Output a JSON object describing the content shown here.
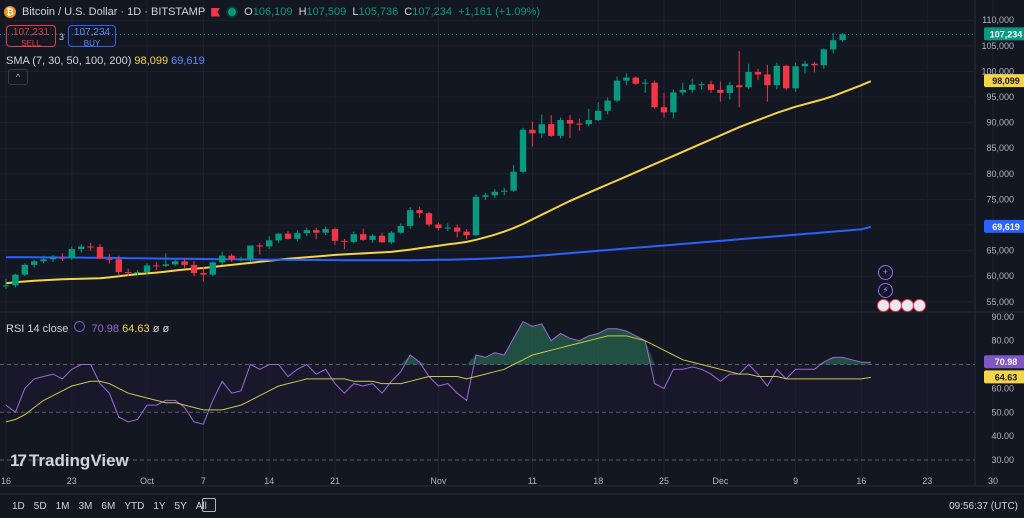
{
  "header": {
    "symbol": "Bitcoin / U.S. Dollar · 1D · BITSTAMP",
    "coin_glyph": "₿",
    "ohlc": [
      {
        "k": "O",
        "v": "106,109"
      },
      {
        "k": "H",
        "v": "107,509"
      },
      {
        "k": "L",
        "v": "105,736"
      },
      {
        "k": "C",
        "v": "107,234"
      }
    ],
    "change": "+1,161 (+1.09%)"
  },
  "trade": {
    "sell_price": "107,231",
    "sell_label": "SELL",
    "spread": "3",
    "buy_price": "107,234",
    "buy_label": "BUY"
  },
  "sma_legend": {
    "label": "SMA (7, 30, 50, 100, 200)",
    "value1": "98,099",
    "value2": "69,619",
    "collapse": "^"
  },
  "rsi_legend": {
    "label": "RSI 14 close",
    "value1": "70.98",
    "value2": "64.63",
    "extra1": "ø",
    "extra2": "ø"
  },
  "price_labels": [
    {
      "text": "107,234",
      "value": 107234,
      "color": "#089981"
    },
    {
      "text": "98,099",
      "value": 98099,
      "color": "#f5d547"
    },
    {
      "text": "69,619",
      "value": 69619,
      "color": "#2962ff"
    }
  ],
  "rsi_labels": [
    {
      "text": "70.98",
      "value": 70.98,
      "color": "#7e57c2"
    },
    {
      "text": "64.63",
      "value": 64.63,
      "color": "#f5d547"
    }
  ],
  "branding": {
    "logo_mark": "17",
    "logo_text": "TradingView"
  },
  "periods": [
    "1D",
    "5D",
    "1M",
    "3M",
    "6M",
    "YTD",
    "1Y",
    "5Y",
    "All"
  ],
  "clock": "09:56:37 (UTC)",
  "colors": {
    "up": "#089981",
    "down": "#f23645",
    "sma_fast": "#f5d547",
    "sma_slow": "#2962ff",
    "rsi": "#9c6ad6",
    "rsi_ma": "#c8c84a"
  },
  "chart_data": [
    {
      "type": "candlestick",
      "title": "Bitcoin / U.S. Dollar · 1D · BITSTAMP",
      "ylim": [
        53000,
        112000
      ],
      "y_ticks": [
        55000,
        60000,
        65000,
        70000,
        75000,
        80000,
        85000,
        90000,
        95000,
        100000,
        105000,
        110000
      ],
      "y_tick_labels": [
        "55,000",
        "60,000",
        "65,000",
        "70,000",
        "75,000",
        "80,000",
        "85,000",
        "90,000",
        "95,000",
        "100,000",
        "105,000",
        "110,000"
      ],
      "x_ticks": [
        {
          "day": 0,
          "label": "16"
        },
        {
          "day": 7,
          "label": "23"
        },
        {
          "day": 15,
          "label": "Oct"
        },
        {
          "day": 21,
          "label": "7"
        },
        {
          "day": 28,
          "label": "14"
        },
        {
          "day": 35,
          "label": "21"
        },
        {
          "day": 46,
          "label": "Nov"
        },
        {
          "day": 56,
          "label": "11"
        },
        {
          "day": 63,
          "label": "18"
        },
        {
          "day": 70,
          "label": "25"
        },
        {
          "day": 76,
          "label": "Dec"
        },
        {
          "day": 84,
          "label": "9"
        },
        {
          "day": 91,
          "label": "16"
        },
        {
          "day": 98,
          "label": "23"
        },
        {
          "day": 105,
          "label": "30"
        }
      ],
      "x_start_date": "2024-09-16",
      "candles": [
        [
          58200,
          59500,
          57500,
          58200
        ],
        [
          58200,
          60500,
          57800,
          60300
        ],
        [
          60300,
          62500,
          60000,
          62200
        ],
        [
          62200,
          63200,
          61700,
          62900
        ],
        [
          62900,
          64000,
          62500,
          63300
        ],
        [
          63300,
          64100,
          62800,
          63600
        ],
        [
          63600,
          64500,
          63000,
          63500
        ],
        [
          63500,
          65800,
          63200,
          65300
        ],
        [
          65300,
          66200,
          64600,
          65800
        ],
        [
          65800,
          66500,
          65000,
          65700
        ],
        [
          65700,
          66300,
          63500,
          63400
        ],
        [
          63400,
          64400,
          62500,
          63300
        ],
        [
          63300,
          64000,
          60000,
          60800
        ],
        [
          60800,
          61500,
          60000,
          60700
        ],
        [
          60700,
          61200,
          60200,
          60800
        ],
        [
          60800,
          62500,
          60300,
          62100
        ],
        [
          62100,
          62800,
          61200,
          62000
        ],
        [
          62000,
          64500,
          61800,
          62300
        ],
        [
          62300,
          63200,
          62000,
          62900
        ],
        [
          62900,
          63500,
          61600,
          62200
        ],
        [
          62200,
          63000,
          60000,
          60600
        ],
        [
          60600,
          61800,
          58900,
          60300
        ],
        [
          60300,
          62900,
          60000,
          62700
        ],
        [
          62700,
          64800,
          62200,
          64000
        ],
        [
          64000,
          64400,
          62800,
          63200
        ],
        [
          63200,
          63800,
          62900,
          63300
        ],
        [
          63300,
          66000,
          62800,
          66000
        ],
        [
          66000,
          66500,
          64200,
          65800
        ],
        [
          65800,
          67800,
          65300,
          67000
        ],
        [
          67000,
          68400,
          66500,
          68300
        ],
        [
          68300,
          68800,
          67100,
          67300
        ],
        [
          67300,
          69000,
          66800,
          68400
        ],
        [
          68400,
          69500,
          67800,
          69000
        ],
        [
          69000,
          69500,
          67200,
          68500
        ],
        [
          68500,
          69700,
          68000,
          69200
        ],
        [
          69200,
          69500,
          66100,
          66900
        ],
        [
          66900,
          67300,
          65300,
          66700
        ],
        [
          66700,
          68700,
          66400,
          68200
        ],
        [
          68200,
          69300,
          66900,
          67100
        ],
        [
          67100,
          68200,
          66500,
          67900
        ],
        [
          67900,
          68500,
          66600,
          66600
        ],
        [
          66600,
          68800,
          66300,
          68500
        ],
        [
          68500,
          70300,
          68300,
          69800
        ],
        [
          69800,
          73500,
          69300,
          72900
        ],
        [
          72900,
          73600,
          71400,
          72300
        ],
        [
          72300,
          72500,
          69700,
          70100
        ],
        [
          70100,
          70500,
          68900,
          69400
        ],
        [
          69400,
          70300,
          68800,
          69500
        ],
        [
          69500,
          70100,
          67600,
          68700
        ],
        [
          68700,
          69200,
          67200,
          68000
        ],
        [
          68000,
          76000,
          67800,
          75500
        ],
        [
          75500,
          76300,
          74900,
          75800
        ],
        [
          75800,
          77000,
          75300,
          76500
        ],
        [
          76500,
          77300,
          75800,
          76700
        ],
        [
          76700,
          81700,
          76500,
          80400
        ],
        [
          80400,
          89000,
          80100,
          88600
        ],
        [
          88600,
          90200,
          85300,
          87900
        ],
        [
          87900,
          91600,
          87000,
          89700
        ],
        [
          89700,
          91500,
          87200,
          87400
        ],
        [
          87400,
          91000,
          86900,
          90500
        ],
        [
          90500,
          91500,
          87000,
          89800
        ],
        [
          89800,
          90800,
          88400,
          89700
        ],
        [
          89700,
          92700,
          89300,
          90500
        ],
        [
          90500,
          94000,
          90300,
          92300
        ],
        [
          92300,
          94900,
          91600,
          94300
        ],
        [
          94300,
          99000,
          94000,
          98200
        ],
        [
          98200,
          99600,
          97300,
          98800
        ],
        [
          98800,
          99000,
          97400,
          97600
        ],
        [
          97600,
          98500,
          95800,
          97800
        ],
        [
          97800,
          98200,
          92700,
          93000
        ],
        [
          93000,
          95800,
          91000,
          92000
        ],
        [
          92000,
          96500,
          90800,
          95900
        ],
        [
          95900,
          97800,
          95300,
          96400
        ],
        [
          96400,
          98600,
          95800,
          97400
        ],
        [
          97400,
          98000,
          96500,
          97500
        ],
        [
          97500,
          98200,
          95800,
          96400
        ],
        [
          96400,
          98000,
          94100,
          95800
        ],
        [
          95800,
          98000,
          94500,
          97300
        ],
        [
          97300,
          104000,
          93000,
          96900
        ],
        [
          96900,
          101500,
          96600,
          99900
        ],
        [
          99900,
          100500,
          98300,
          99400
        ],
        [
          99400,
          101300,
          94100,
          97300
        ],
        [
          97300,
          101700,
          96500,
          101100
        ],
        [
          101100,
          101300,
          96300,
          96700
        ],
        [
          96700,
          101700,
          96000,
          101000
        ],
        [
          101000,
          102000,
          99600,
          101500
        ],
        [
          101500,
          101900,
          99800,
          101200
        ],
        [
          101200,
          104500,
          100500,
          104300
        ],
        [
          104300,
          107500,
          103500,
          106100
        ],
        [
          106100,
          107509,
          105736,
          107234
        ]
      ],
      "series": [
        {
          "name": "SMA",
          "values": [
            58600,
            58800,
            58950,
            59100,
            59200,
            59300,
            59400,
            59450,
            59500,
            59550,
            59600,
            59750,
            60000,
            60200,
            60400,
            60550,
            60700,
            60900,
            61100,
            61300,
            61450,
            61600,
            61800,
            62000,
            62200,
            62400,
            62600,
            62800,
            63000,
            63200,
            63400,
            63550,
            63700,
            63850,
            64000,
            64150,
            64250,
            64350,
            64450,
            64550,
            64650,
            64750,
            64950,
            65200,
            65450,
            65700,
            65950,
            66200,
            66450,
            66700,
            67100,
            67600,
            68100,
            68700,
            69400,
            70200,
            71100,
            72000,
            72900,
            73800,
            74700,
            75500,
            76300,
            77100,
            77900,
            78700,
            79500,
            80300,
            81100,
            81900,
            82700,
            83500,
            84300,
            85100,
            85900,
            86700,
            87500,
            88300,
            89100,
            89800,
            90500,
            91200,
            91900,
            92500,
            93100,
            93600,
            94100,
            94600,
            95200,
            95900,
            96600,
            97300,
            98099
          ]
        },
        {
          "name": "SMA",
          "values": [
            63700,
            63700,
            63690,
            63680,
            63670,
            63660,
            63650,
            63640,
            63620,
            63600,
            63580,
            63560,
            63540,
            63520,
            63500,
            63480,
            63460,
            63440,
            63420,
            63400,
            63380,
            63360,
            63340,
            63320,
            63300,
            63280,
            63260,
            63240,
            63220,
            63200,
            63180,
            63170,
            63160,
            63150,
            63140,
            63130,
            63120,
            63110,
            63100,
            63100,
            63100,
            63100,
            63100,
            63110,
            63130,
            63160,
            63190,
            63220,
            63260,
            63300,
            63360,
            63430,
            63510,
            63600,
            63700,
            63810,
            63930,
            64060,
            64200,
            64350,
            64500,
            64650,
            64800,
            64950,
            65100,
            65250,
            65400,
            65550,
            65700,
            65850,
            66000,
            66150,
            66300,
            66450,
            66600,
            66750,
            66900,
            67050,
            67200,
            67350,
            67500,
            67650,
            67800,
            67950,
            68100,
            68250,
            68400,
            68550,
            68700,
            68850,
            69000,
            69150,
            69619
          ]
        }
      ]
    },
    {
      "type": "line",
      "title": "RSI 14 close",
      "ylim": [
        25,
        92
      ],
      "y_ticks": [
        30,
        40,
        50,
        60,
        70,
        80,
        90
      ],
      "y_tick_labels": [
        "30.00",
        "40.00",
        "50.00",
        "60.00",
        "70.00",
        "80.00",
        "90.00"
      ],
      "bands": {
        "upper": 70,
        "middle": 50,
        "lower": 30
      },
      "series": [
        {
          "name": "RSI",
          "values": [
            53,
            50,
            60,
            64,
            65,
            66,
            64,
            68,
            70,
            70,
            62,
            58,
            48,
            46,
            47,
            53,
            53,
            55,
            55,
            52,
            46,
            45,
            55,
            63,
            58,
            59,
            70,
            68,
            70,
            70,
            65,
            68,
            70,
            66,
            68,
            62,
            58,
            62,
            61,
            62,
            58,
            63,
            67,
            74,
            71,
            65,
            61,
            62,
            58,
            55,
            74,
            73,
            75,
            74,
            81,
            88,
            86,
            87,
            80,
            83,
            81,
            80,
            82,
            83,
            85,
            85,
            84,
            82,
            80,
            62,
            60,
            68,
            68,
            69,
            68,
            66,
            63,
            66,
            66,
            70,
            66,
            61,
            68,
            64,
            68,
            68,
            68,
            71,
            73,
            73,
            72,
            71,
            70.98
          ]
        },
        {
          "name": "RSI MA",
          "values": [
            46,
            47,
            49,
            52,
            55,
            57,
            59,
            61,
            62,
            63,
            63,
            62,
            60,
            58,
            57,
            56,
            55,
            54,
            54,
            53,
            52,
            51,
            51,
            51,
            52,
            53,
            55,
            57,
            59,
            61,
            62,
            63,
            64,
            64,
            64,
            64,
            64,
            63,
            63,
            63,
            62,
            62,
            62,
            63,
            64,
            65,
            65,
            65,
            65,
            64,
            65,
            66,
            67,
            68,
            70,
            72,
            74,
            75,
            76,
            77,
            78,
            79,
            80,
            81,
            82,
            82,
            82,
            81,
            80,
            78,
            76,
            74,
            72,
            71,
            70,
            69,
            68,
            67,
            66,
            66,
            65,
            65,
            65,
            64,
            64,
            64,
            64,
            64,
            64,
            64,
            64,
            64,
            64.63
          ]
        }
      ]
    }
  ]
}
